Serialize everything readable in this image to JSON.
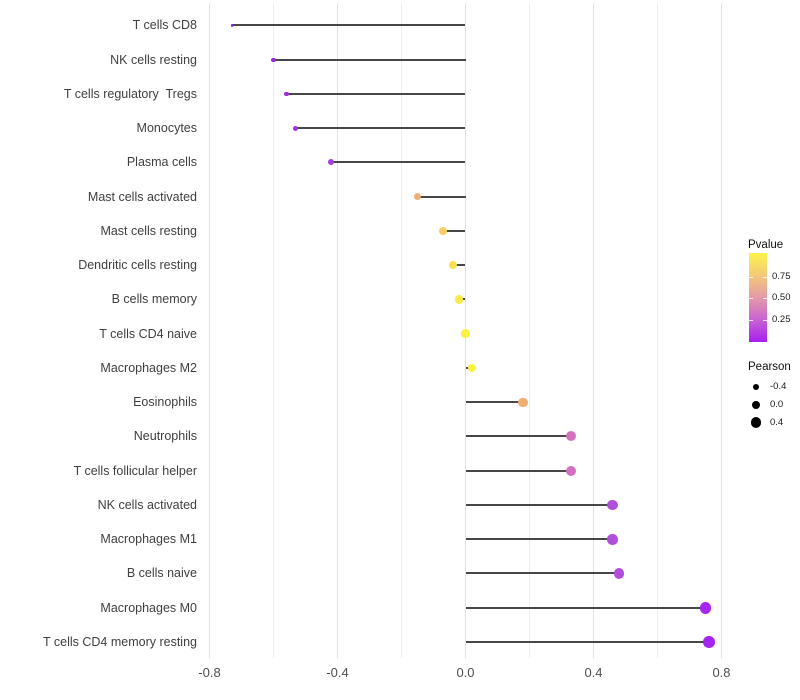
{
  "chart_data": {
    "type": "scatter",
    "subtype": "lollipop",
    "title": "",
    "xlabel": "",
    "ylabel": "",
    "grid": true,
    "xlim": [
      -0.82,
      0.84
    ],
    "x_ticks": [
      {
        "label": "-0.8",
        "value": -0.8
      },
      {
        "label": "-0.4",
        "value": -0.4
      },
      {
        "label": "0.0",
        "value": 0.0
      },
      {
        "label": "0.4",
        "value": 0.4
      },
      {
        "label": "0.8",
        "value": 0.8
      }
    ],
    "x_minor_ticks": [
      -0.6,
      -0.2,
      0.2,
      0.6
    ],
    "categories": [
      "T cells CD8",
      "NK cells resting",
      "T cells regulatory  Tregs",
      "Monocytes",
      "Plasma cells",
      "Mast cells activated",
      "Mast cells resting",
      "Dendritic cells resting",
      "B cells memory",
      "T cells CD4 naive",
      "Macrophages M2",
      "Eosinophils",
      "Neutrophils",
      "T cells follicular helper",
      "NK cells activated",
      "Macrophages M1",
      "B cells naive",
      "Macrophages M0",
      "T cells CD4 memory resting"
    ],
    "points": [
      {
        "name": "T cells CD8",
        "pearson": -0.73,
        "color": "#9a1fe8"
      },
      {
        "name": "NK cells resting",
        "pearson": -0.6,
        "color": "#9929dd"
      },
      {
        "name": "T cells regulatory  Tregs",
        "pearson": -0.56,
        "color": "#9c2edf"
      },
      {
        "name": "Monocytes",
        "pearson": -0.53,
        "color": "#9e32e0"
      },
      {
        "name": "Plasma cells",
        "pearson": -0.42,
        "color": "#a73ee2"
      },
      {
        "name": "Mast cells activated",
        "pearson": -0.15,
        "color": "#efae74"
      },
      {
        "name": "Mast cells resting",
        "pearson": -0.07,
        "color": "#f3d05f"
      },
      {
        "name": "Dendritic cells resting",
        "pearson": -0.04,
        "color": "#f6e24e"
      },
      {
        "name": "B cells memory",
        "pearson": -0.02,
        "color": "#f8ea48"
      },
      {
        "name": "T cells CD4 naive",
        "pearson": 0.0,
        "color": "#faf23f"
      },
      {
        "name": "Macrophages M2",
        "pearson": 0.02,
        "color": "#faf142"
      },
      {
        "name": "Eosinophils",
        "pearson": 0.18,
        "color": "#efad72"
      },
      {
        "name": "Neutrophils",
        "pearson": 0.33,
        "color": "#d471be"
      },
      {
        "name": "T cells follicular helper",
        "pearson": 0.33,
        "color": "#d36fc0"
      },
      {
        "name": "NK cells activated",
        "pearson": 0.46,
        "color": "#b04edc"
      },
      {
        "name": "Macrophages M1",
        "pearson": 0.46,
        "color": "#b04fdc"
      },
      {
        "name": "B cells naive",
        "pearson": 0.48,
        "color": "#b14ede"
      },
      {
        "name": "Macrophages M0",
        "pearson": 0.75,
        "color": "#a527f0"
      },
      {
        "name": "T cells CD4 memory resting",
        "pearson": 0.76,
        "color": "#a424f1"
      }
    ],
    "size_scale": {
      "domain": [
        -0.73,
        0.76
      ],
      "radius_px": [
        1.3,
        5.9
      ]
    },
    "legend_position": "right"
  },
  "legends": {
    "pvalue": {
      "title": "Pvalue",
      "ticks": [
        {
          "label": "0.75"
        },
        {
          "label": "0.50"
        },
        {
          "label": "0.25"
        }
      ],
      "gradient_bottom_to_top": [
        "#a81ff0",
        "#c863d2",
        "#e49aa8",
        "#f4c878",
        "#fbf44b"
      ]
    },
    "pearson": {
      "title": "Pearson",
      "items": [
        {
          "label": "-0.4",
          "value": -0.4
        },
        {
          "label": "0.0",
          "value": 0.0
        },
        {
          "label": "0.4",
          "value": 0.4
        }
      ],
      "dot_color": "#000000"
    }
  },
  "colors": {
    "background": "#ffffff",
    "stem": "#474747",
    "grid_major": "#e2e2e2",
    "grid_minor": "#ececec",
    "axis_text": "#4d4d4d"
  }
}
